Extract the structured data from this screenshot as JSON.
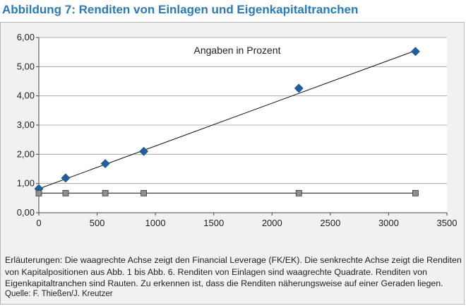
{
  "title": "Abbildung 7: Renditen von Einlagen und Eigenkapitaltranchen",
  "caption": "Erläuterungen: Die waagrechte Achse zeigt den Financial Leverage (FK/EK). Die senkrechte Achse zeigt die Renditen von Kapitalpositionen aus Abb. 1 bis Abb. 6. Renditen von Einlagen sind waagrechte Quadrate. Renditen von Eigenkapitaltranchen sind Rauten. Zu erkennen ist, dass die Renditen näherungsweise auf einer Geraden liegen.",
  "source": "Quelle: F. Thießen/J. Kreutzer",
  "chart_data": {
    "type": "scatter",
    "annotation": "Angaben in Prozent",
    "xlim": [
      0,
      3500
    ],
    "ylim": [
      0,
      6
    ],
    "x_ticks": [
      "0",
      "500",
      "1000",
      "1500",
      "2000",
      "2500",
      "3000",
      "3500"
    ],
    "y_ticks": [
      "0,00",
      "1,00",
      "2,00",
      "3,00",
      "4,00",
      "5,00",
      "6,00"
    ],
    "grid": "horizontal",
    "series": [
      {
        "marker": "diamond",
        "color": "#1f5fa0",
        "points": [
          [
            0,
            0.82
          ],
          [
            230,
            1.19
          ],
          [
            570,
            1.68
          ],
          [
            900,
            2.1
          ],
          [
            2230,
            4.26
          ],
          [
            3230,
            5.52
          ]
        ],
        "trendline": [
          [
            0,
            0.82
          ],
          [
            3230,
            5.55
          ]
        ]
      },
      {
        "marker": "square",
        "color": "#8f8f8f",
        "points": [
          [
            0,
            0.67
          ],
          [
            230,
            0.67
          ],
          [
            570,
            0.67
          ],
          [
            900,
            0.67
          ],
          [
            2230,
            0.67
          ],
          [
            3230,
            0.67
          ]
        ],
        "trendline": [
          [
            0,
            0.67
          ],
          [
            3230,
            0.67
          ]
        ]
      }
    ]
  }
}
